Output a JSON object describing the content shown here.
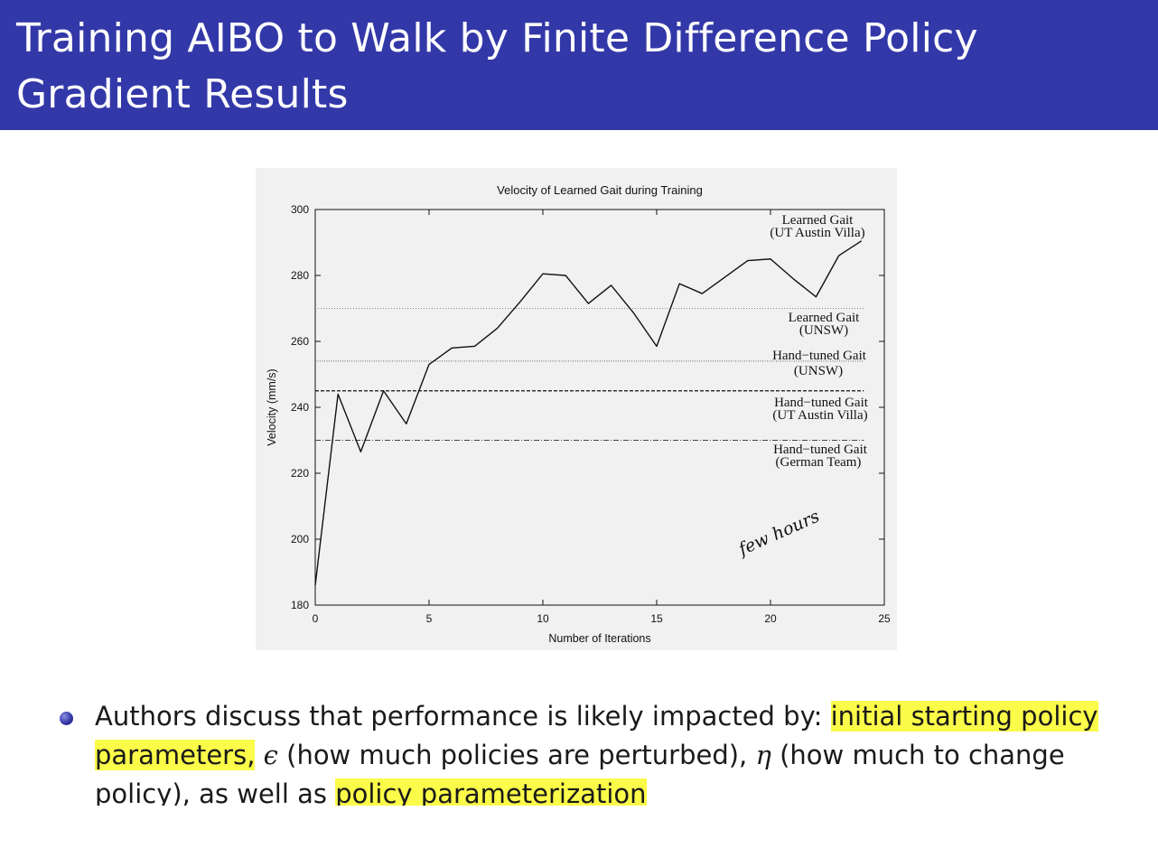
{
  "slide": {
    "title": "Training AIBO to Walk by Finite Difference Policy Gradient Results",
    "bullet": {
      "part1": "Authors discuss that performance is likely impacted by: ",
      "highlight1": "initial starting policy parameters,",
      "epsilon_symbol": "ϵ",
      "part2": " (how much policies are perturbed), ",
      "eta_symbol": "η",
      "part3": " (how much to change policy), as well as ",
      "highlight2": "policy parameterization"
    },
    "annotation": "few hours",
    "highlight_color": "#fbfb49",
    "title_bar_color": "#3338a8"
  },
  "chart_data": {
    "type": "line",
    "title": "Velocity of Learned Gait during Training",
    "xlabel": "Number of Iterations",
    "ylabel": "Velocity (mm/s)",
    "xlim": [
      0,
      25
    ],
    "ylim": [
      180,
      300
    ],
    "xticks": [
      0,
      5,
      10,
      15,
      20,
      25
    ],
    "yticks": [
      180,
      200,
      220,
      240,
      260,
      280,
      300
    ],
    "grid": false,
    "series": [
      {
        "name": "Learned Gait (UT Austin Villa)",
        "x": [
          0,
          1,
          2,
          3,
          4,
          5,
          6,
          7,
          8,
          9,
          10,
          11,
          12,
          13,
          14,
          15,
          16,
          17,
          18,
          19,
          20,
          21,
          22,
          23,
          24
        ],
        "values": [
          186,
          244,
          226.5,
          245,
          235,
          253,
          258,
          258.5,
          264,
          272,
          280.5,
          280,
          271.5,
          277,
          268.5,
          258.5,
          277.5,
          274.5,
          279.5,
          284.5,
          285,
          279,
          273.5,
          286,
          290.5
        ]
      }
    ],
    "reference_lines": [
      {
        "label_line1": "Learned Gait",
        "label_line2": "(UNSW)",
        "value": 270,
        "style": "dotted"
      },
      {
        "label_line1": "Hand−tuned Gait",
        "label_line2": "(UNSW)",
        "value": 254,
        "style": "fine-dotted"
      },
      {
        "label_line1": "Hand−tuned Gait",
        "label_line2": "(UT Austin Villa)",
        "value": 245,
        "style": "dashed"
      },
      {
        "label_line1": "Hand−tuned Gait",
        "label_line2": "(German Team)",
        "value": 230,
        "style": "dash-dot"
      }
    ],
    "series_label_line1": "Learned Gait",
    "series_label_line2": "(UT Austin Villa)"
  }
}
